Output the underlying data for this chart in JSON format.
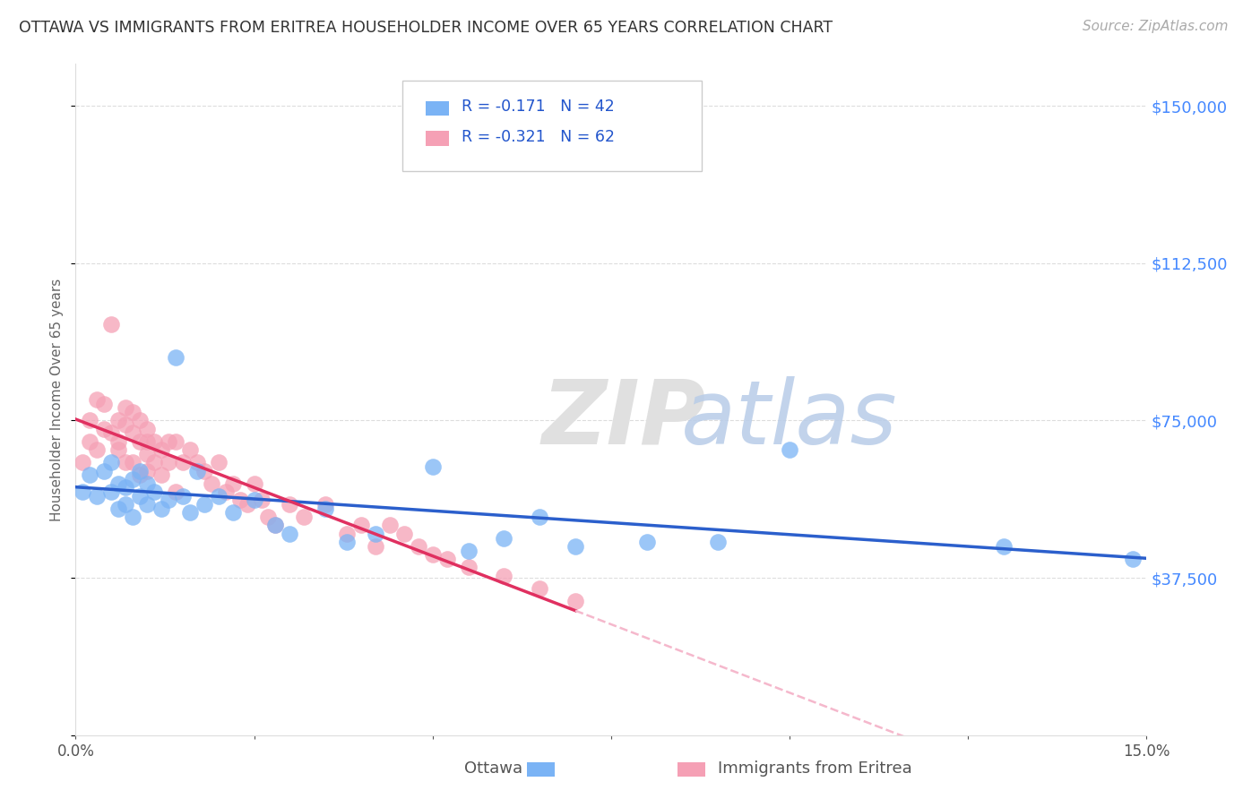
{
  "title": "OTTAWA VS IMMIGRANTS FROM ERITREA HOUSEHOLDER INCOME OVER 65 YEARS CORRELATION CHART",
  "source": "Source: ZipAtlas.com",
  "ylabel": "Householder Income Over 65 years",
  "xmin": 0.0,
  "xmax": 0.15,
  "ymin": 0,
  "ymax": 160000,
  "yticks": [
    0,
    37500,
    75000,
    112500,
    150000
  ],
  "ytick_labels": [
    "",
    "$37,500",
    "$75,000",
    "$112,500",
    "$150,000"
  ],
  "xticks": [
    0.0,
    0.025,
    0.05,
    0.075,
    0.1,
    0.125,
    0.15
  ],
  "xtick_labels": [
    "0.0%",
    "",
    "",
    "",
    "",
    "",
    "15.0%"
  ],
  "ottawa_color": "#7ab3f5",
  "eritrea_color": "#f5a0b5",
  "ottawa_line_color": "#2b5fcc",
  "eritrea_line_color": "#e03060",
  "eritrea_dashed_color": "#f5b8cc",
  "legend_R_ottawa": "-0.171",
  "legend_N_ottawa": "42",
  "legend_R_eritrea": "-0.321",
  "legend_N_eritrea": "62",
  "ottawa_x": [
    0.001,
    0.002,
    0.003,
    0.004,
    0.005,
    0.005,
    0.006,
    0.006,
    0.007,
    0.007,
    0.008,
    0.008,
    0.009,
    0.009,
    0.01,
    0.01,
    0.011,
    0.012,
    0.013,
    0.014,
    0.015,
    0.016,
    0.017,
    0.018,
    0.02,
    0.022,
    0.025,
    0.028,
    0.03,
    0.035,
    0.038,
    0.042,
    0.05,
    0.055,
    0.06,
    0.065,
    0.07,
    0.08,
    0.09,
    0.1,
    0.13,
    0.148
  ],
  "ottawa_y": [
    58000,
    62000,
    57000,
    63000,
    65000,
    58000,
    60000,
    54000,
    55000,
    59000,
    52000,
    61000,
    57000,
    63000,
    55000,
    60000,
    58000,
    54000,
    56000,
    90000,
    57000,
    53000,
    63000,
    55000,
    57000,
    53000,
    56000,
    50000,
    48000,
    54000,
    46000,
    48000,
    64000,
    44000,
    47000,
    52000,
    45000,
    46000,
    46000,
    68000,
    45000,
    42000
  ],
  "eritrea_x": [
    0.001,
    0.002,
    0.002,
    0.003,
    0.003,
    0.004,
    0.004,
    0.005,
    0.005,
    0.006,
    0.006,
    0.006,
    0.007,
    0.007,
    0.007,
    0.008,
    0.008,
    0.008,
    0.009,
    0.009,
    0.009,
    0.01,
    0.01,
    0.01,
    0.01,
    0.011,
    0.011,
    0.012,
    0.012,
    0.013,
    0.013,
    0.014,
    0.014,
    0.015,
    0.016,
    0.017,
    0.018,
    0.019,
    0.02,
    0.021,
    0.022,
    0.023,
    0.024,
    0.025,
    0.026,
    0.027,
    0.028,
    0.03,
    0.032,
    0.035,
    0.038,
    0.04,
    0.042,
    0.044,
    0.046,
    0.048,
    0.05,
    0.052,
    0.055,
    0.06,
    0.065,
    0.07
  ],
  "eritrea_y": [
    65000,
    70000,
    75000,
    80000,
    68000,
    73000,
    79000,
    98000,
    72000,
    70000,
    75000,
    68000,
    74000,
    78000,
    65000,
    72000,
    77000,
    65000,
    70000,
    75000,
    62000,
    70000,
    73000,
    67000,
    63000,
    70000,
    65000,
    68000,
    62000,
    70000,
    65000,
    70000,
    58000,
    65000,
    68000,
    65000,
    63000,
    60000,
    65000,
    58000,
    60000,
    56000,
    55000,
    60000,
    56000,
    52000,
    50000,
    55000,
    52000,
    55000,
    48000,
    50000,
    45000,
    50000,
    48000,
    45000,
    43000,
    42000,
    40000,
    38000,
    35000,
    32000
  ]
}
